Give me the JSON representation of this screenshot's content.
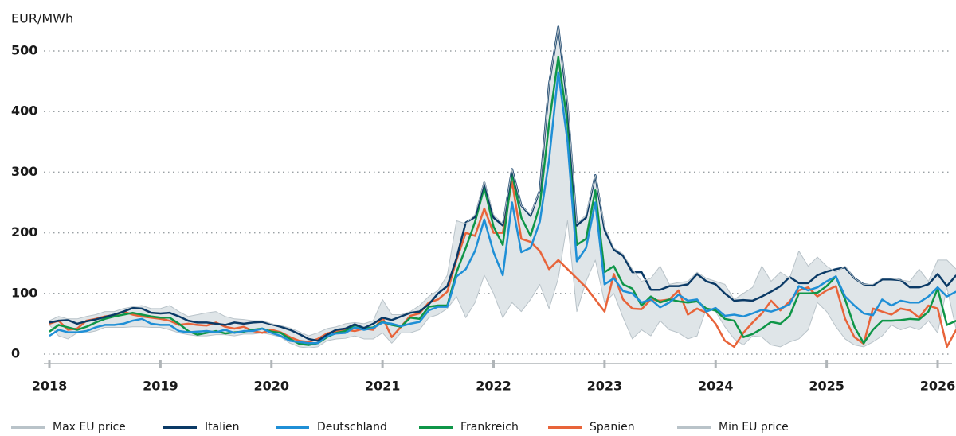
{
  "chart_data": {
    "type": "line",
    "ylabel": "EUR/MWh",
    "categories": [
      "2018",
      null,
      null,
      null,
      null,
      null,
      null,
      null,
      null,
      null,
      null,
      null,
      "2019",
      null,
      null,
      null,
      null,
      null,
      null,
      null,
      null,
      null,
      null,
      null,
      "2020",
      null,
      null,
      null,
      null,
      null,
      null,
      null,
      null,
      null,
      null,
      null,
      "2021",
      null,
      null,
      null,
      null,
      null,
      null,
      null,
      null,
      null,
      null,
      null,
      "2022",
      null,
      null,
      null,
      null,
      null,
      null,
      null,
      null,
      null,
      null,
      null,
      "2023",
      null,
      null,
      null,
      null,
      null,
      null,
      null,
      null,
      null,
      null,
      null,
      "2024",
      null,
      null,
      null,
      null,
      null,
      null,
      null,
      null,
      null,
      null,
      null,
      "2025",
      null,
      null,
      null,
      null,
      null,
      null,
      null,
      null,
      null,
      null,
      null,
      "2026",
      null,
      null
    ],
    "ylim": [
      0,
      500
    ],
    "yticks": [
      0,
      100,
      200,
      300,
      400,
      500
    ],
    "grid": true,
    "legend": "bottom",
    "series": [
      {
        "name": "Max EU price",
        "color": "#b9c3c9",
        "values": [
          55,
          62,
          58,
          58,
          62,
          65,
          70,
          70,
          75,
          78,
          80,
          75,
          75,
          80,
          70,
          62,
          65,
          68,
          70,
          62,
          58,
          57,
          55,
          55,
          50,
          47,
          43,
          37,
          30,
          35,
          42,
          45,
          50,
          52,
          50,
          55,
          90,
          65,
          65,
          70,
          80,
          95,
          105,
          130,
          220,
          215,
          230,
          285,
          230,
          215,
          305,
          245,
          230,
          270,
          445,
          540,
          415,
          215,
          230,
          295,
          210,
          175,
          165,
          140,
          120,
          125,
          145,
          115,
          118,
          120,
          135,
          125,
          120,
          115,
          90,
          100,
          110,
          145,
          120,
          135,
          125,
          170,
          145,
          160,
          145,
          135,
          145,
          125,
          115,
          115,
          125,
          125,
          122,
          120,
          140,
          120,
          155,
          155,
          140
        ]
      },
      {
        "name": "Italien",
        "color": "#0b3a66",
        "values": [
          52,
          55,
          56,
          50,
          54,
          57,
          61,
          65,
          70,
          76,
          75,
          68,
          67,
          68,
          62,
          55,
          52,
          52,
          50,
          48,
          52,
          50,
          52,
          53,
          49,
          45,
          40,
          33,
          25,
          22,
          32,
          40,
          42,
          49,
          43,
          50,
          60,
          56,
          62,
          68,
          70,
          82,
          100,
          112,
          158,
          217,
          226,
          283,
          225,
          212,
          305,
          245,
          228,
          270,
          445,
          540,
          410,
          212,
          225,
          295,
          205,
          172,
          162,
          135,
          135,
          106,
          106,
          112,
          112,
          115,
          132,
          120,
          115,
          100,
          88,
          89,
          88,
          95,
          103,
          112,
          127,
          117,
          117,
          130,
          136,
          140,
          143,
          125,
          115,
          113,
          123,
          123,
          122,
          110,
          110,
          115,
          132,
          112,
          130
        ]
      },
      {
        "name": "Deutschland",
        "color": "#1f8fd6",
        "values": [
          30,
          40,
          36,
          36,
          38,
          44,
          48,
          48,
          50,
          55,
          58,
          50,
          48,
          48,
          38,
          36,
          37,
          38,
          36,
          40,
          35,
          38,
          38,
          42,
          35,
          30,
          22,
          20,
          18,
          18,
          30,
          34,
          35,
          44,
          40,
          43,
          52,
          50,
          46,
          50,
          53,
          72,
          78,
          78,
          128,
          140,
          170,
          222,
          168,
          130,
          250,
          168,
          175,
          218,
          320,
          465,
          350,
          153,
          175,
          250,
          115,
          125,
          104,
          100,
          85,
          90,
          77,
          85,
          98,
          88,
          90,
          70,
          76,
          63,
          65,
          62,
          67,
          73,
          70,
          75,
          82,
          112,
          105,
          110,
          120,
          128,
          95,
          80,
          67,
          64,
          90,
          80,
          88,
          85,
          85,
          95,
          110,
          95,
          103
        ]
      },
      {
        "name": "Frankreich",
        "color": "#0f9648",
        "values": [
          37,
          48,
          44,
          40,
          45,
          52,
          58,
          62,
          65,
          68,
          65,
          62,
          60,
          60,
          50,
          38,
          32,
          35,
          38,
          34,
          36,
          37,
          40,
          42,
          37,
          35,
          25,
          17,
          15,
          18,
          28,
          35,
          38,
          48,
          42,
          44,
          53,
          48,
          45,
          60,
          58,
          78,
          80,
          80,
          135,
          175,
          218,
          275,
          210,
          180,
          298,
          225,
          195,
          245,
          380,
          490,
          380,
          180,
          190,
          270,
          135,
          145,
          115,
          108,
          80,
          95,
          85,
          90,
          87,
          85,
          87,
          75,
          72,
          58,
          55,
          28,
          33,
          42,
          53,
          50,
          63,
          100,
          100,
          101,
          112,
          128,
          90,
          45,
          18,
          40,
          55,
          55,
          56,
          58,
          57,
          70,
          108,
          48,
          55
        ]
      },
      {
        "name": "Spanien",
        "color": "#e8643a",
        "values": [
          50,
          55,
          40,
          42,
          55,
          58,
          62,
          64,
          70,
          65,
          62,
          60,
          58,
          55,
          48,
          50,
          48,
          47,
          52,
          45,
          42,
          45,
          38,
          35,
          40,
          36,
          28,
          22,
          20,
          25,
          34,
          38,
          40,
          38,
          42,
          40,
          60,
          28,
          45,
          63,
          67,
          85,
          90,
          103,
          155,
          200,
          195,
          240,
          200,
          200,
          285,
          190,
          185,
          170,
          140,
          155,
          140,
          125,
          110,
          90,
          70,
          132,
          90,
          75,
          74,
          90,
          88,
          90,
          105,
          65,
          75,
          68,
          50,
          22,
          12,
          35,
          52,
          67,
          88,
          72,
          87,
          105,
          110,
          95,
          105,
          112,
          58,
          28,
          17,
          75,
          70,
          65,
          75,
          72,
          60,
          80,
          75,
          12,
          40
        ]
      },
      {
        "name": "Min EU price",
        "color": "#b9c3c9",
        "values": [
          48,
          30,
          25,
          35,
          35,
          38,
          44,
          44,
          44,
          45,
          45,
          44,
          44,
          40,
          35,
          32,
          30,
          30,
          32,
          32,
          30,
          33,
          33,
          35,
          32,
          28,
          18,
          12,
          10,
          12,
          22,
          25,
          26,
          30,
          25,
          25,
          35,
          18,
          35,
          35,
          40,
          60,
          65,
          75,
          95,
          60,
          85,
          130,
          100,
          60,
          85,
          70,
          90,
          115,
          75,
          125,
          220,
          70,
          120,
          155,
          85,
          100,
          60,
          25,
          40,
          30,
          55,
          40,
          35,
          25,
          30,
          75,
          70,
          45,
          25,
          15,
          30,
          28,
          15,
          12,
          20,
          25,
          40,
          85,
          70,
          45,
          25,
          15,
          12,
          20,
          30,
          48,
          40,
          45,
          40,
          55,
          35,
          110,
          40
        ]
      }
    ]
  }
}
